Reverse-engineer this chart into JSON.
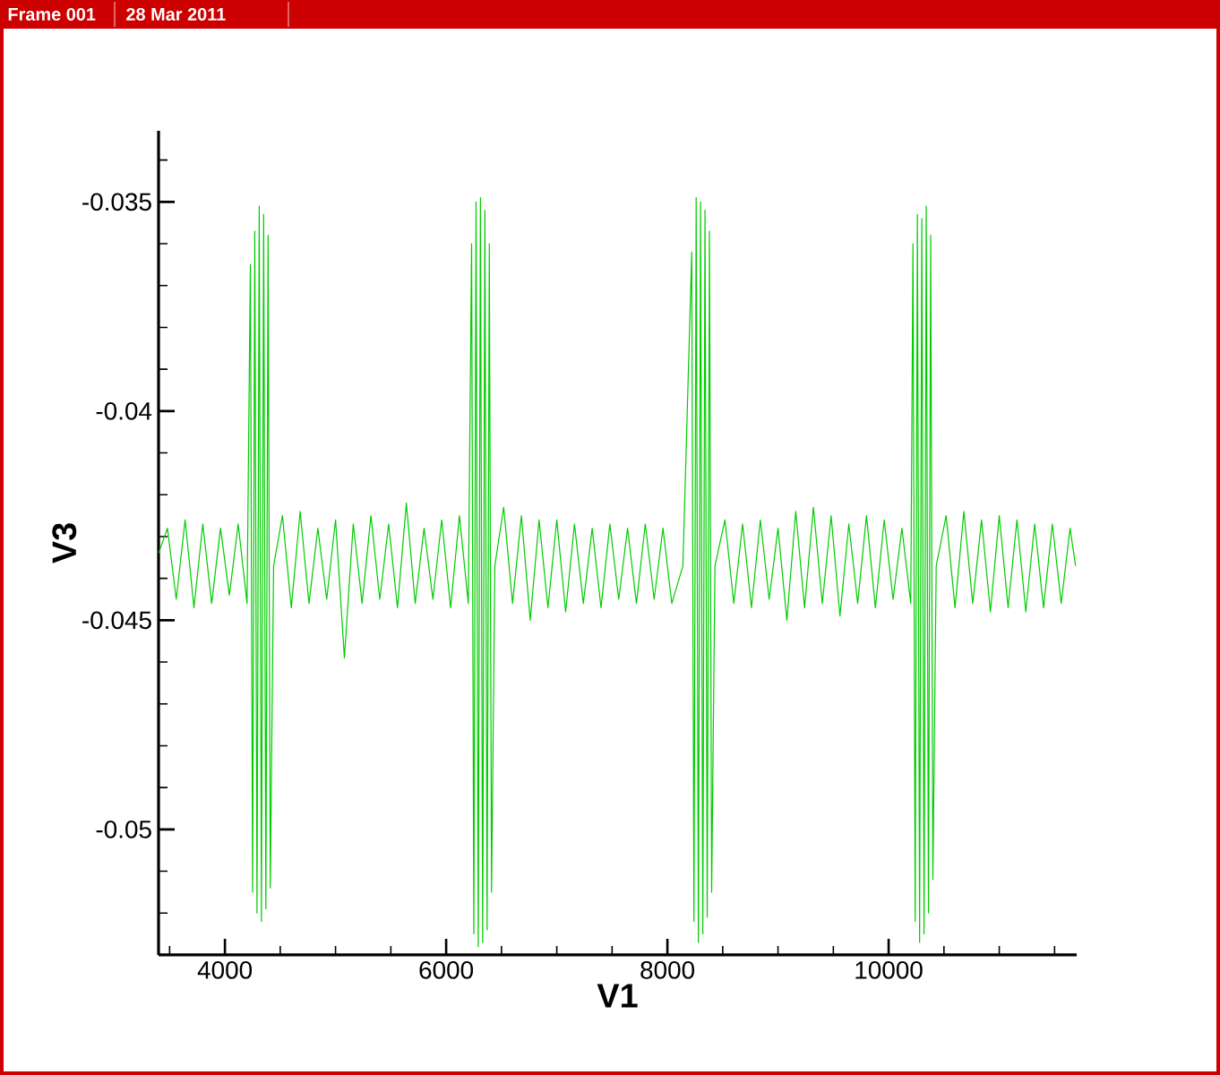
{
  "chart_data": {
    "type": "line",
    "annotations": [
      "Frame 001",
      "28 Mar 2011"
    ],
    "xlabel": "V1",
    "ylabel": "V3",
    "xlim": [
      3400,
      11700
    ],
    "ylim": [
      -0.053,
      -0.0333
    ],
    "xticks": [
      {
        "value": 3500,
        "label": null
      },
      4000,
      {
        "value": 4500,
        "label": null
      },
      {
        "value": 5000,
        "label": null
      },
      {
        "value": 5500,
        "label": null
      },
      6000,
      {
        "value": 6500,
        "label": null
      },
      {
        "value": 7000,
        "label": null
      },
      {
        "value": 7500,
        "label": null
      },
      8000,
      {
        "value": 8500,
        "label": null
      },
      {
        "value": 9000,
        "label": null
      },
      {
        "value": 9500,
        "label": null
      },
      10000,
      {
        "value": 10500,
        "label": null
      },
      {
        "value": 11000,
        "label": null
      },
      {
        "value": 11500,
        "label": null
      }
    ],
    "yticks": [
      {
        "value": -0.053,
        "label": null
      },
      {
        "value": -0.052,
        "label": null
      },
      {
        "value": -0.051,
        "label": null
      },
      -0.05,
      {
        "value": -0.049,
        "label": null
      },
      {
        "value": -0.048,
        "label": null
      },
      {
        "value": -0.047,
        "label": null
      },
      {
        "value": -0.046,
        "label": null
      },
      -0.045,
      {
        "value": -0.044,
        "label": null
      },
      {
        "value": -0.043,
        "label": null
      },
      {
        "value": -0.042,
        "label": null
      },
      {
        "value": -0.041,
        "label": null
      },
      -0.04,
      {
        "value": -0.039,
        "label": null
      },
      {
        "value": -0.038,
        "label": null
      },
      {
        "value": -0.037,
        "label": null
      },
      {
        "value": -0.036,
        "label": null
      },
      -0.035,
      {
        "value": -0.034,
        "label": null
      }
    ],
    "series": [
      {
        "color": "#00cc00",
        "x": [
          3400,
          3480,
          3560,
          3640,
          3720,
          3800,
          3880,
          3960,
          4040,
          4120,
          4200,
          4230,
          4250,
          4270,
          4290,
          4310,
          4330,
          4350,
          4370,
          4390,
          4410,
          4440,
          4520,
          4600,
          4680,
          4760,
          4840,
          4920,
          5000,
          5080,
          5160,
          5240,
          5320,
          5400,
          5480,
          5560,
          5640,
          5720,
          5800,
          5880,
          5960,
          6040,
          6120,
          6200,
          6230,
          6250,
          6270,
          6290,
          6310,
          6330,
          6350,
          6370,
          6390,
          6410,
          6440,
          6520,
          6600,
          6680,
          6760,
          6840,
          6920,
          7000,
          7080,
          7160,
          7240,
          7320,
          7400,
          7480,
          7560,
          7640,
          7720,
          7800,
          7880,
          7960,
          8040,
          8140,
          8220,
          8240,
          8260,
          8280,
          8300,
          8320,
          8340,
          8360,
          8380,
          8400,
          8430,
          8520,
          8600,
          8680,
          8760,
          8840,
          8920,
          9000,
          9080,
          9160,
          9240,
          9320,
          9400,
          9480,
          9560,
          9640,
          9720,
          9800,
          9880,
          9960,
          10040,
          10120,
          10200,
          10220,
          10240,
          10260,
          10280,
          10300,
          10320,
          10340,
          10360,
          10380,
          10400,
          10430,
          10520,
          10600,
          10680,
          10760,
          10840,
          10920,
          11000,
          11080,
          11160,
          11240,
          11320,
          11400,
          11480,
          11560,
          11640,
          11690
        ],
        "values": [
          -0.0434,
          -0.0428,
          -0.0445,
          -0.0426,
          -0.0447,
          -0.0427,
          -0.0446,
          -0.0428,
          -0.0444,
          -0.0427,
          -0.0446,
          -0.0365,
          -0.0515,
          -0.0357,
          -0.052,
          -0.0351,
          -0.0522,
          -0.0353,
          -0.0519,
          -0.0358,
          -0.0514,
          -0.0437,
          -0.0425,
          -0.0447,
          -0.0424,
          -0.0446,
          -0.0428,
          -0.0445,
          -0.0426,
          -0.0459,
          -0.0427,
          -0.0446,
          -0.0425,
          -0.0445,
          -0.0427,
          -0.0447,
          -0.0422,
          -0.0446,
          -0.0428,
          -0.0445,
          -0.0426,
          -0.0447,
          -0.0425,
          -0.0446,
          -0.036,
          -0.0525,
          -0.035,
          -0.0528,
          -0.0349,
          -0.0527,
          -0.0352,
          -0.0524,
          -0.036,
          -0.0515,
          -0.0437,
          -0.0423,
          -0.0446,
          -0.0425,
          -0.045,
          -0.0426,
          -0.0447,
          -0.0426,
          -0.0448,
          -0.0427,
          -0.0446,
          -0.0428,
          -0.0447,
          -0.0427,
          -0.0445,
          -0.0428,
          -0.0446,
          -0.0427,
          -0.0445,
          -0.0428,
          -0.0446,
          -0.0437,
          -0.0362,
          -0.0522,
          -0.0349,
          -0.0527,
          -0.035,
          -0.0525,
          -0.0352,
          -0.0521,
          -0.0357,
          -0.0515,
          -0.0437,
          -0.0426,
          -0.0446,
          -0.0427,
          -0.0447,
          -0.0426,
          -0.0445,
          -0.0428,
          -0.045,
          -0.0424,
          -0.0447,
          -0.0423,
          -0.0446,
          -0.0425,
          -0.0449,
          -0.0427,
          -0.0446,
          -0.0425,
          -0.0447,
          -0.0426,
          -0.0445,
          -0.0428,
          -0.0446,
          -0.036,
          -0.0522,
          -0.0353,
          -0.0527,
          -0.0354,
          -0.0525,
          -0.0351,
          -0.052,
          -0.0358,
          -0.0512,
          -0.0437,
          -0.0425,
          -0.0447,
          -0.0424,
          -0.0446,
          -0.0426,
          -0.0448,
          -0.0425,
          -0.0447,
          -0.0426,
          -0.0448,
          -0.0427,
          -0.0447,
          -0.0427,
          -0.0446,
          -0.0428,
          -0.0437
        ]
      }
    ]
  }
}
